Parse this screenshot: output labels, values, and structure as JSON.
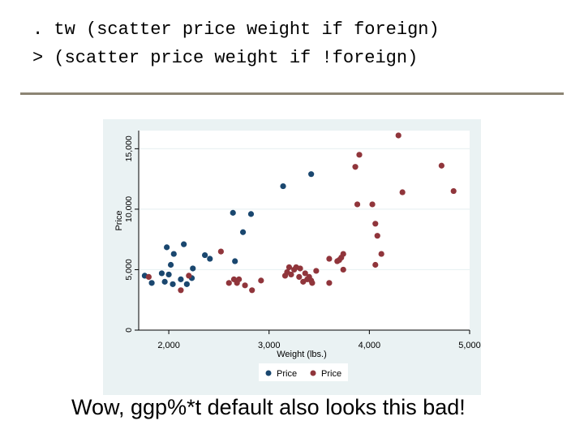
{
  "commands": {
    "line1": ". tw (scatter price weight if foreign)",
    "line2": "> (scatter price weight if !foreign)"
  },
  "caption": "Wow, ggp%*t default also looks this bad!",
  "colors": {
    "plot_region": "#ffffff",
    "graph_region": "#eaf2f3",
    "foreign": "#1a476f",
    "domestic": "#90353b",
    "divider": "#8c8474"
  },
  "chart_data": {
    "type": "scatter",
    "xlabel": "Weight (lbs.)",
    "ylabel": "Price",
    "xlim": [
      1700,
      5000
    ],
    "ylim": [
      0,
      16500
    ],
    "xticks": [
      2000,
      3000,
      4000,
      5000
    ],
    "xtick_labels": [
      "2,000",
      "3,000",
      "4,000",
      "5,000"
    ],
    "yticks": [
      0,
      5000,
      10000,
      15000
    ],
    "ytick_labels": [
      "0",
      "5,000",
      "10,000",
      "15,000"
    ],
    "grid": true,
    "legend": {
      "position": "bottom",
      "entries": [
        "Price",
        "Price"
      ]
    },
    "series": [
      {
        "name": "Price",
        "color": "#1a476f",
        "points": [
          [
            1760,
            4500
          ],
          [
            1830,
            3900
          ],
          [
            1930,
            4700
          ],
          [
            1960,
            4000
          ],
          [
            1980,
            6850
          ],
          [
            2020,
            5400
          ],
          [
            2050,
            6300
          ],
          [
            2000,
            4600
          ],
          [
            2040,
            3800
          ],
          [
            2120,
            4200
          ],
          [
            2150,
            7100
          ],
          [
            2180,
            3800
          ],
          [
            2230,
            4300
          ],
          [
            2240,
            5100
          ],
          [
            2360,
            6200
          ],
          [
            2410,
            5900
          ],
          [
            2640,
            9700
          ],
          [
            2660,
            5700
          ],
          [
            2740,
            8100
          ],
          [
            2820,
            9600
          ],
          [
            3140,
            11900
          ],
          [
            3420,
            12900
          ]
        ]
      },
      {
        "name": "Price",
        "color": "#90353b",
        "points": [
          [
            1800,
            4400
          ],
          [
            2120,
            3300
          ],
          [
            2200,
            4500
          ],
          [
            2520,
            6500
          ],
          [
            2600,
            3900
          ],
          [
            2650,
            4200
          ],
          [
            2680,
            3900
          ],
          [
            2700,
            4200
          ],
          [
            2760,
            3700
          ],
          [
            2830,
            3300
          ],
          [
            2920,
            4100
          ],
          [
            3160,
            4500
          ],
          [
            3180,
            4800
          ],
          [
            3200,
            5200
          ],
          [
            3220,
            4600
          ],
          [
            3250,
            5000
          ],
          [
            3270,
            5200
          ],
          [
            3300,
            4400
          ],
          [
            3310,
            5100
          ],
          [
            3340,
            4000
          ],
          [
            3360,
            4700
          ],
          [
            3380,
            4200
          ],
          [
            3400,
            4400
          ],
          [
            3420,
            4100
          ],
          [
            3430,
            3900
          ],
          [
            3470,
            4900
          ],
          [
            3600,
            3900
          ],
          [
            3600,
            5900
          ],
          [
            3680,
            5700
          ],
          [
            3700,
            5800
          ],
          [
            3720,
            6000
          ],
          [
            3740,
            6300
          ],
          [
            3740,
            5000
          ],
          [
            3860,
            13500
          ],
          [
            3880,
            10400
          ],
          [
            3900,
            14500
          ],
          [
            4030,
            10400
          ],
          [
            4060,
            8800
          ],
          [
            4060,
            5400
          ],
          [
            4080,
            7800
          ],
          [
            4120,
            6300
          ],
          [
            4330,
            11400
          ],
          [
            4290,
            16100
          ],
          [
            4720,
            13600
          ],
          [
            4840,
            11500
          ]
        ]
      }
    ]
  }
}
